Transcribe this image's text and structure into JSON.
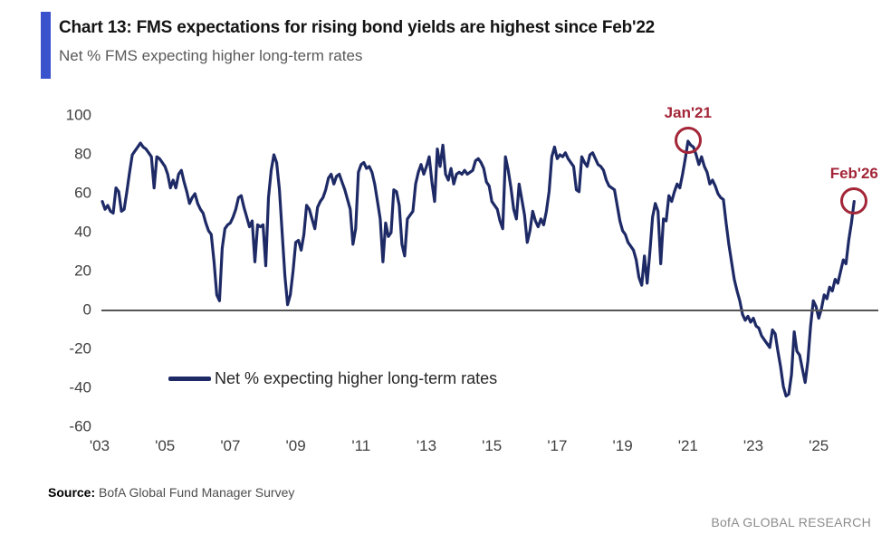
{
  "header": {
    "title": "Chart 13: FMS expectations for rising bond yields are highest since Feb'22",
    "subtitle": "Net % FMS expecting higher long-term rates"
  },
  "chart_data": {
    "type": "line",
    "title": "Net % FMS expecting higher long-term rates",
    "grid": false,
    "zero_line": true,
    "x_axis": {
      "ticks": [
        "'03",
        "'05",
        "'07",
        "'09",
        "'11",
        "'13",
        "'15",
        "'17",
        "'19",
        "'21",
        "'23",
        "'25"
      ],
      "range_years": [
        2003,
        2026.2
      ]
    },
    "y_axis": {
      "ticks": [
        100,
        80,
        60,
        40,
        20,
        0,
        -20,
        -40,
        -60
      ],
      "range": [
        -60,
        100
      ]
    },
    "series": [
      {
        "name": "Net % expecting higher long-term rates",
        "color": "#1E2A66",
        "start": "2003-02",
        "frequency": "monthly",
        "values": [
          56,
          52,
          54,
          51,
          50,
          63,
          61,
          51,
          52,
          61,
          71,
          80,
          82,
          84,
          86,
          84,
          83,
          81,
          79,
          63,
          79,
          78,
          76,
          74,
          70,
          63,
          67,
          63,
          70,
          72,
          66,
          61,
          55,
          58,
          60,
          55,
          52,
          50,
          45,
          41,
          39,
          25,
          8,
          5,
          32,
          42,
          44,
          45,
          48,
          52,
          58,
          59,
          53,
          48,
          43,
          46,
          25,
          44,
          43,
          44,
          23,
          58,
          72,
          80,
          76,
          62,
          40,
          18,
          3,
          8,
          20,
          35,
          36,
          31,
          39,
          54,
          52,
          47,
          42,
          53,
          56,
          58,
          62,
          68,
          70,
          65,
          69,
          70,
          66,
          62,
          57,
          52,
          34,
          42,
          71,
          75,
          76,
          73,
          74,
          71,
          65,
          56,
          47,
          25,
          45,
          38,
          40,
          62,
          61,
          54,
          34,
          28,
          47,
          49,
          51,
          65,
          71,
          75,
          70,
          74,
          79,
          66,
          56,
          83,
          74,
          85,
          70,
          67,
          73,
          65,
          70,
          71,
          70,
          72,
          70,
          71,
          72,
          77,
          78,
          76,
          73,
          66,
          64,
          56,
          54,
          52,
          46,
          42,
          79,
          72,
          63,
          52,
          47,
          65,
          57,
          49,
          35,
          41,
          51,
          46,
          43,
          47,
          44,
          51,
          61,
          79,
          84,
          78,
          80,
          79,
          81,
          78,
          76,
          74,
          62,
          61,
          79,
          76,
          74,
          80,
          81,
          78,
          75,
          74,
          72,
          67,
          64,
          63,
          62,
          54,
          46,
          41,
          39,
          35,
          33,
          31,
          26,
          17,
          13,
          28,
          14,
          30,
          48,
          55,
          51,
          24,
          47,
          46,
          59,
          56,
          61,
          65,
          63,
          70,
          78,
          87,
          85,
          84,
          80,
          75,
          79,
          74,
          71,
          65,
          67,
          64,
          60,
          58,
          57,
          45,
          34,
          25,
          16,
          10,
          5,
          -2,
          -5,
          -3,
          -6,
          -4,
          -8,
          -9,
          -13,
          -15,
          -17,
          -19,
          -10,
          -12,
          -21,
          -29,
          -39,
          -44,
          -43,
          -33,
          -11,
          -21,
          -23,
          -30,
          -37,
          -26,
          -8,
          5,
          2,
          -4,
          1,
          8,
          6,
          12,
          10,
          16,
          14,
          20,
          26,
          24,
          36,
          45,
          56
        ]
      }
    ],
    "annotations": [
      {
        "label": "Jan'21",
        "month": "2021-01",
        "value": 87,
        "color": "#A32638"
      },
      {
        "label": "Feb'26",
        "month": "2026-02",
        "value": 56,
        "color": "#A32638"
      }
    ],
    "legend": {
      "position": "inside-lower-left",
      "entries": [
        "Net % expecting higher long-term rates"
      ]
    }
  },
  "footer": {
    "source_label": "Source:",
    "source_text": " BofA Global Fund Manager Survey",
    "brand": "BofA GLOBAL RESEARCH"
  },
  "colors": {
    "accent_bar": "#3A53CD",
    "line": "#1E2A66",
    "annotation": "#A32638",
    "zero_line": "#555555",
    "title_text": "#141414",
    "subtitle_text": "#595959",
    "tick_text": "#404040",
    "brand_text": "#8C8C8C"
  }
}
